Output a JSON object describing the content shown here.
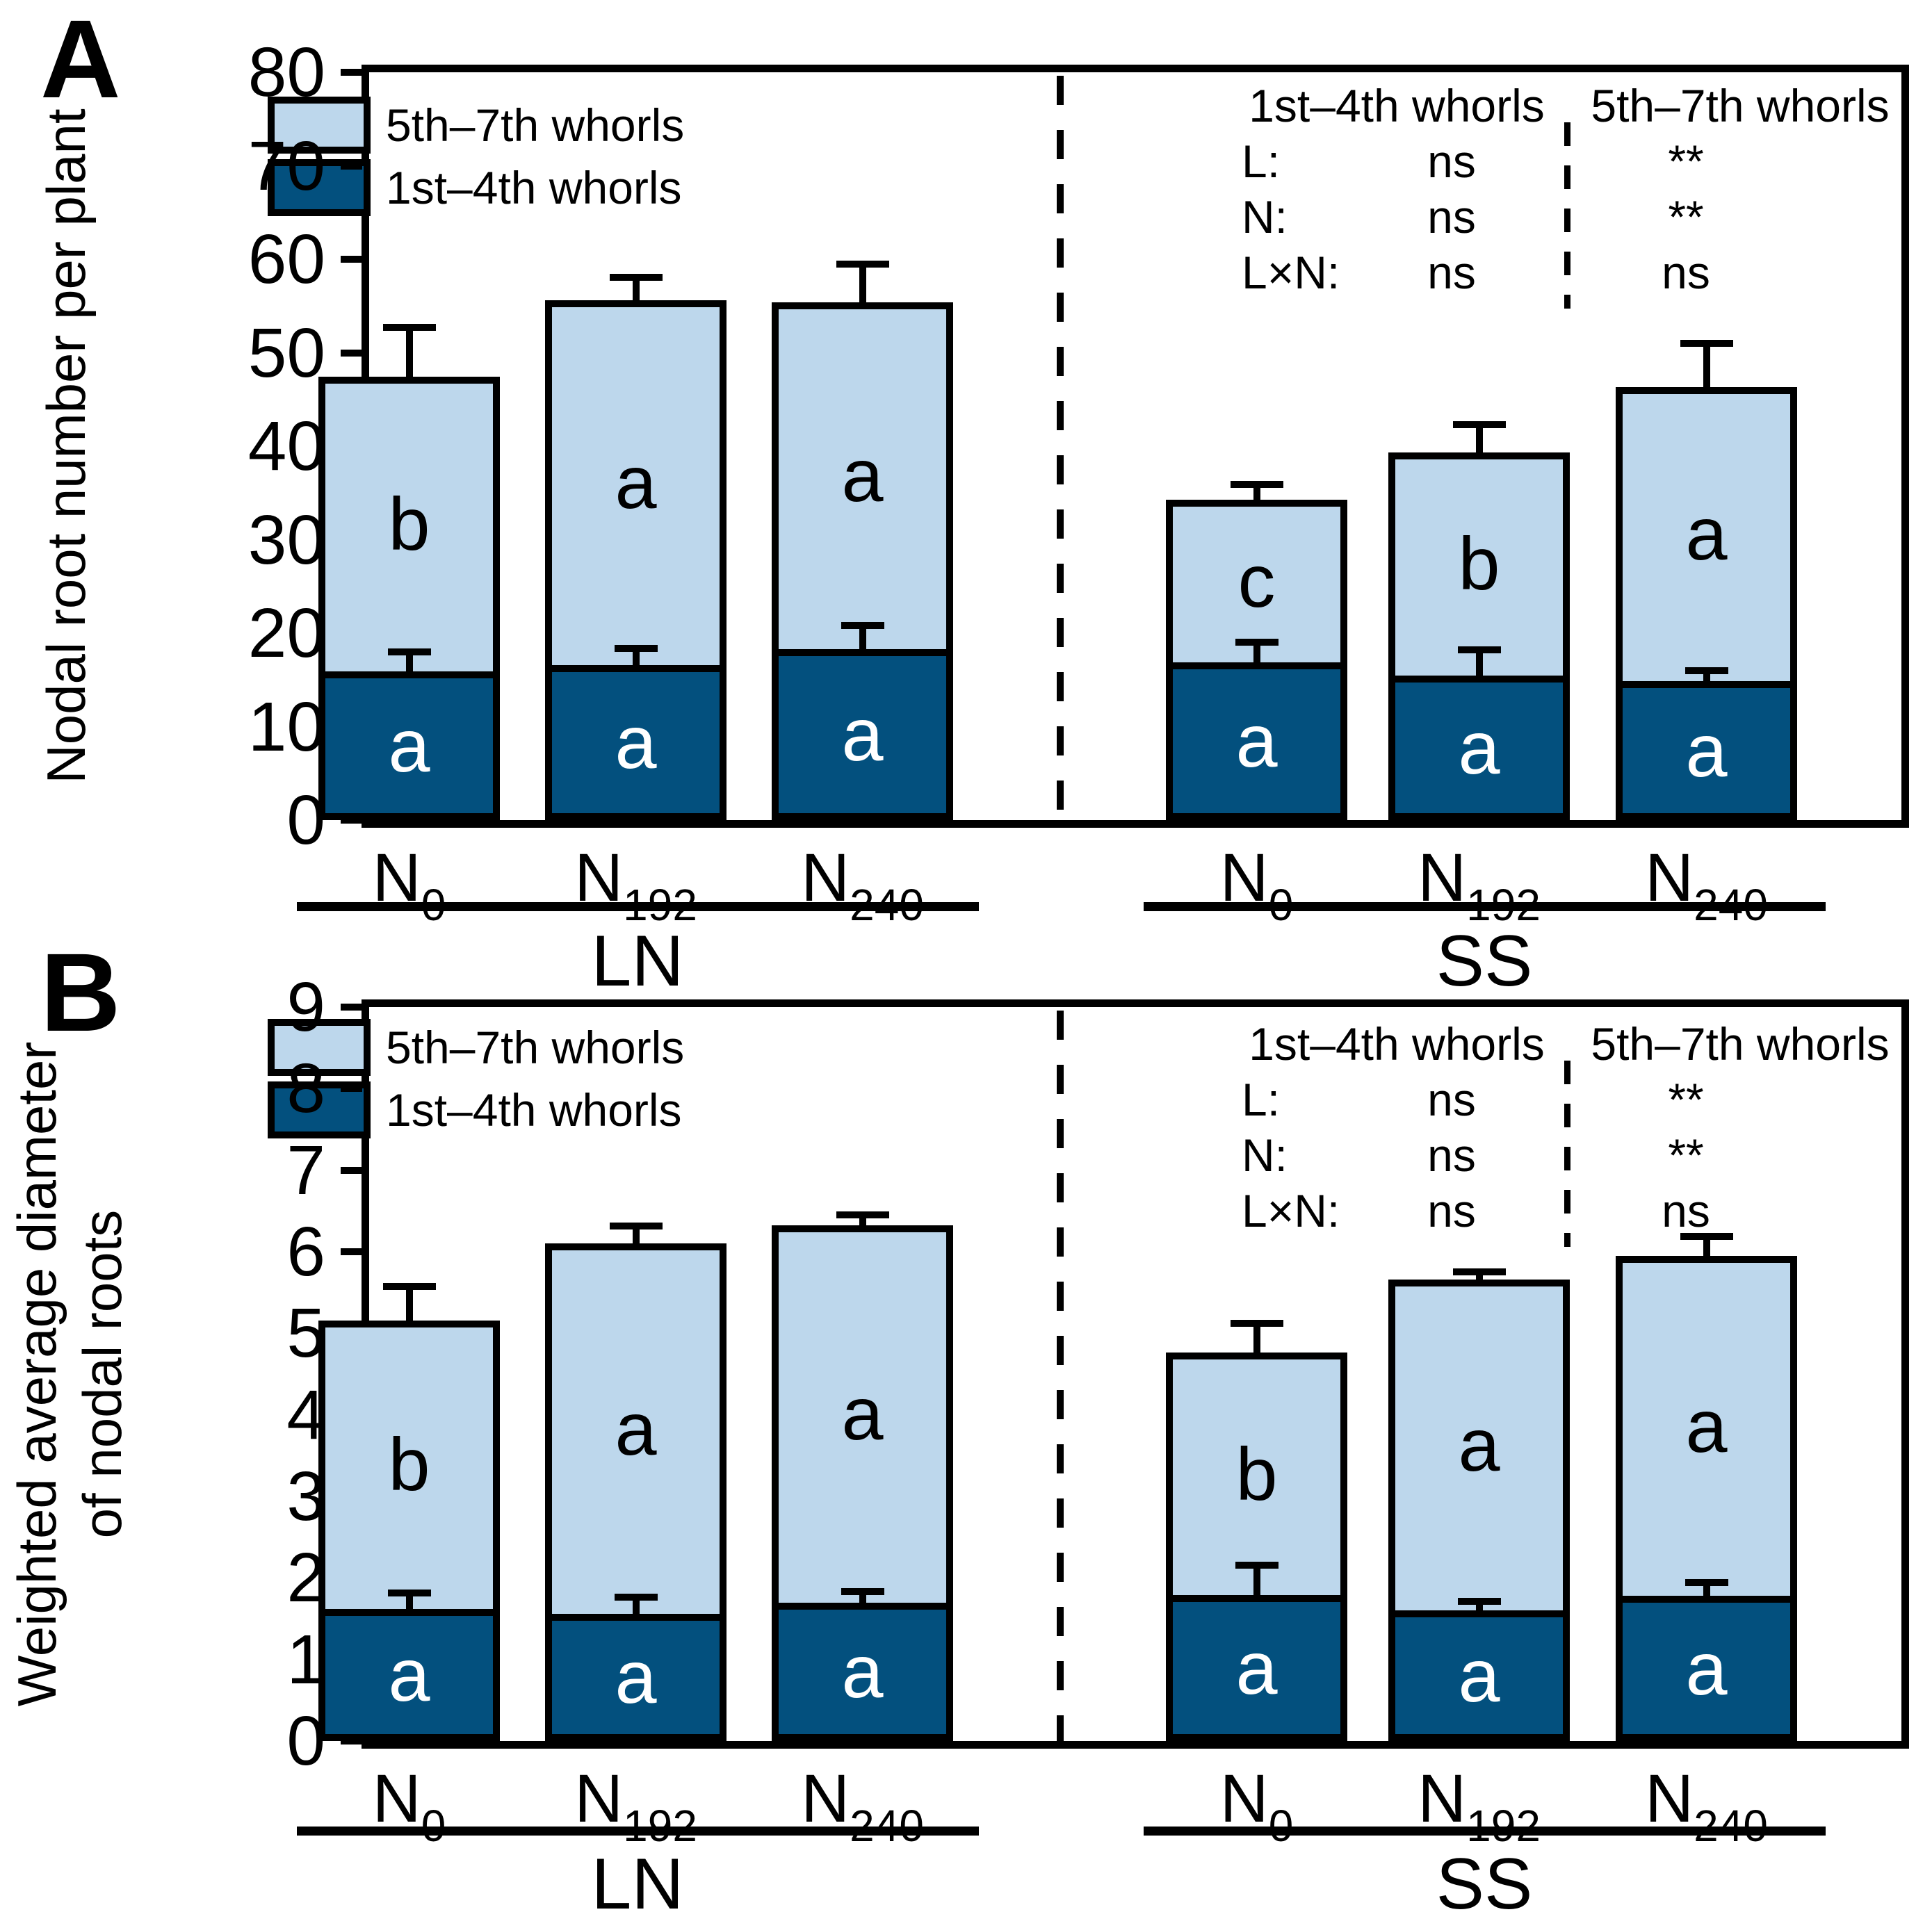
{
  "page": {
    "background": "#ffffff"
  },
  "colors": {
    "light": "#BDD7EC",
    "dark": "#03507E",
    "line": "#000000"
  },
  "legend": {
    "items": [
      {
        "key": "light",
        "label": "5th–7th whorls"
      },
      {
        "key": "dark",
        "label": "1st–4th whorls"
      }
    ]
  },
  "stats": {
    "headers": [
      "1st–4th whorls",
      "5th–7th whorls"
    ],
    "rows": [
      {
        "label": "L:",
        "v1": "ns",
        "v2": "**"
      },
      {
        "label": "N:",
        "v1": "ns",
        "v2": "**"
      },
      {
        "label": "L×N:",
        "v1": "ns",
        "v2": "ns"
      }
    ]
  },
  "xaxis": {
    "groups": [
      {
        "label": "LN"
      },
      {
        "label": "SS"
      }
    ],
    "categories": [
      {
        "base": "N",
        "sub": "0"
      },
      {
        "base": "N",
        "sub": "192"
      },
      {
        "base": "N",
        "sub": "240"
      }
    ]
  },
  "chart_data": [
    {
      "panel": "A",
      "type": "bar",
      "stacked": true,
      "ylabel": "Nodal root number per plant",
      "ylabel_lines": [
        "Nodal root number per plant"
      ],
      "ylim": [
        0,
        80
      ],
      "ytick_step": 10,
      "yticks": [
        0,
        10,
        20,
        30,
        40,
        50,
        60,
        70,
        80
      ],
      "grid": false,
      "legend_position": "top-left",
      "groups": [
        "LN",
        "SS"
      ],
      "categories": [
        "N0",
        "N192",
        "N240",
        "N0",
        "N192",
        "N240"
      ],
      "series": [
        {
          "name": "1st–4th whorls",
          "color_key": "dark",
          "values": [
            15.9,
            16.6,
            18.3,
            16.9,
            15.5,
            14.9
          ],
          "errors": [
            1.8,
            1.5,
            2.2,
            1.8,
            2.4,
            0.8
          ],
          "letters": [
            "a",
            "a",
            "a",
            "a",
            "a",
            "a"
          ]
        },
        {
          "name": "5th–7th whorls",
          "color_key": "light",
          "values": [
            31.5,
            39.0,
            37.1,
            17.4,
            23.8,
            31.4
          ],
          "letters": [
            "b",
            "a",
            "a",
            "c",
            "b",
            "a"
          ]
        }
      ],
      "totals": [
        47.4,
        55.6,
        55.4,
        34.3,
        39.3,
        46.3
      ],
      "total_errors": [
        5.0,
        2.2,
        3.8,
        1.3,
        2.7,
        4.4
      ],
      "significance": {
        "1st–4th whorls": {
          "L": "ns",
          "N": "ns",
          "L×N": "ns"
        },
        "5th–7th whorls": {
          "L": "**",
          "N": "**",
          "L×N": "ns"
        }
      }
    },
    {
      "panel": "B",
      "type": "bar",
      "stacked": true,
      "ylabel": "Weighted average diameter of nodal roots",
      "ylabel_lines": [
        "Weighted average diameter",
        "of nodal roots"
      ],
      "ylim": [
        0,
        9
      ],
      "ytick_step": 1,
      "yticks": [
        0,
        1,
        2,
        3,
        4,
        5,
        6,
        7,
        8,
        9
      ],
      "grid": false,
      "legend_position": "top-left",
      "groups": [
        "LN",
        "SS"
      ],
      "categories": [
        "N0",
        "N192",
        "N240",
        "N0",
        "N192",
        "N240"
      ],
      "series": [
        {
          "name": "1st–4th whorls",
          "color_key": "dark",
          "values": [
            1.62,
            1.56,
            1.7,
            1.79,
            1.6,
            1.78
          ],
          "errors": [
            0.16,
            0.17,
            0.1,
            0.33,
            0.08,
            0.13
          ],
          "letters": [
            "a",
            "a",
            "a",
            "a",
            "a",
            "a"
          ]
        },
        {
          "name": "5th–7th whorls",
          "color_key": "light",
          "values": [
            3.54,
            4.54,
            4.62,
            2.97,
            4.06,
            4.17
          ],
          "letters": [
            "b",
            "a",
            "a",
            "b",
            "a",
            "a"
          ]
        }
      ],
      "totals": [
        5.16,
        6.1,
        6.32,
        4.76,
        5.66,
        5.95
      ],
      "total_errors": [
        0.38,
        0.18,
        0.1,
        0.33,
        0.06,
        0.2
      ],
      "significance": {
        "1st–4th whorls": {
          "L": "ns",
          "N": "ns",
          "L×N": "ns"
        },
        "5th–7th whorls": {
          "L": "**",
          "N": "**",
          "L×N": "ns"
        }
      }
    }
  ]
}
